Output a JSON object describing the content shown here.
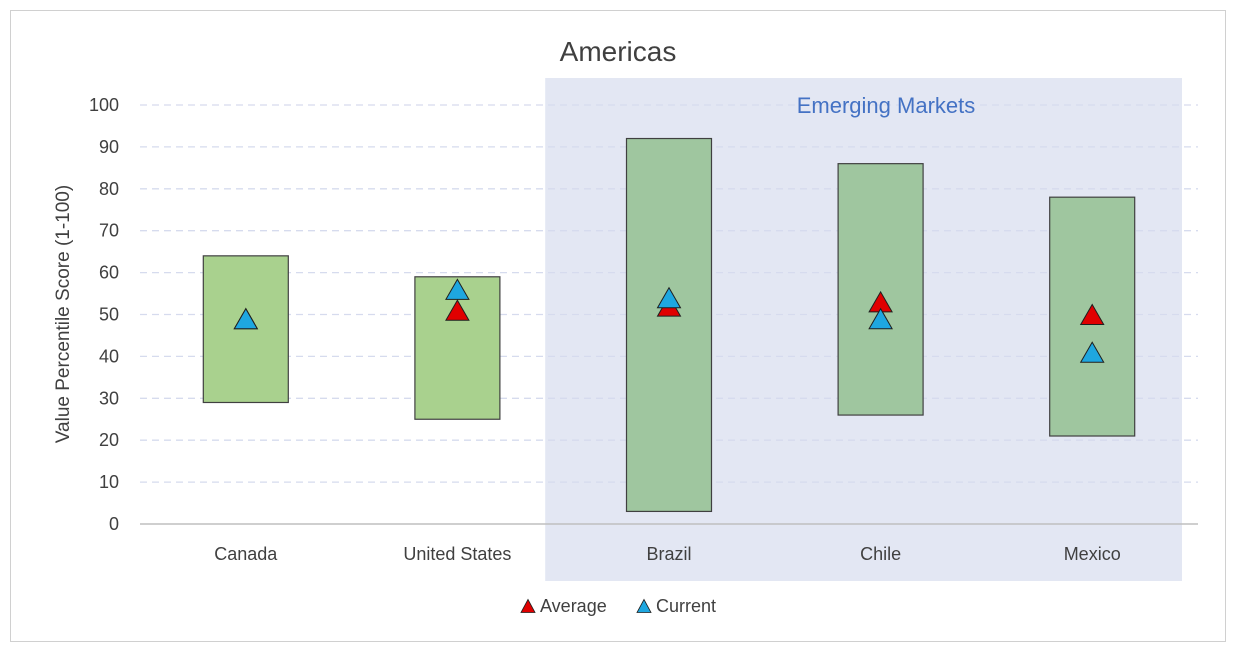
{
  "chart_data": {
    "type": "range-marker",
    "title": "Americas",
    "ylabel": "Value Percentile Score (1-100)",
    "xlabel": "",
    "ylim": [
      0,
      100
    ],
    "yticks": [
      0,
      10,
      20,
      30,
      40,
      50,
      60,
      70,
      80,
      90,
      100
    ],
    "grid": true,
    "legend_position": "bottom",
    "categories": [
      "Canada",
      "United States",
      "Brazil",
      "Chile",
      "Mexico"
    ],
    "range_low": [
      29,
      25,
      3,
      26,
      21
    ],
    "range_high": [
      64,
      59,
      92,
      86,
      78
    ],
    "series": [
      {
        "name": "Average",
        "values": [
          49,
          51,
          52,
          53,
          50
        ],
        "color": "#e00000"
      },
      {
        "name": "Current",
        "values": [
          49,
          56,
          54,
          49,
          41
        ],
        "color": "#1ea7e0"
      }
    ],
    "highlight_region": {
      "label": "Emerging Markets",
      "categories": [
        "Brazil",
        "Chile",
        "Mexico"
      ],
      "color": "#e3e7f3"
    },
    "colors": {
      "bar_developed": "#a9d18e",
      "bar_emerging": "#9fc69f",
      "bar_outline": "#404040",
      "grid": "#d6dbee",
      "axis": "#bfbfbf"
    }
  }
}
